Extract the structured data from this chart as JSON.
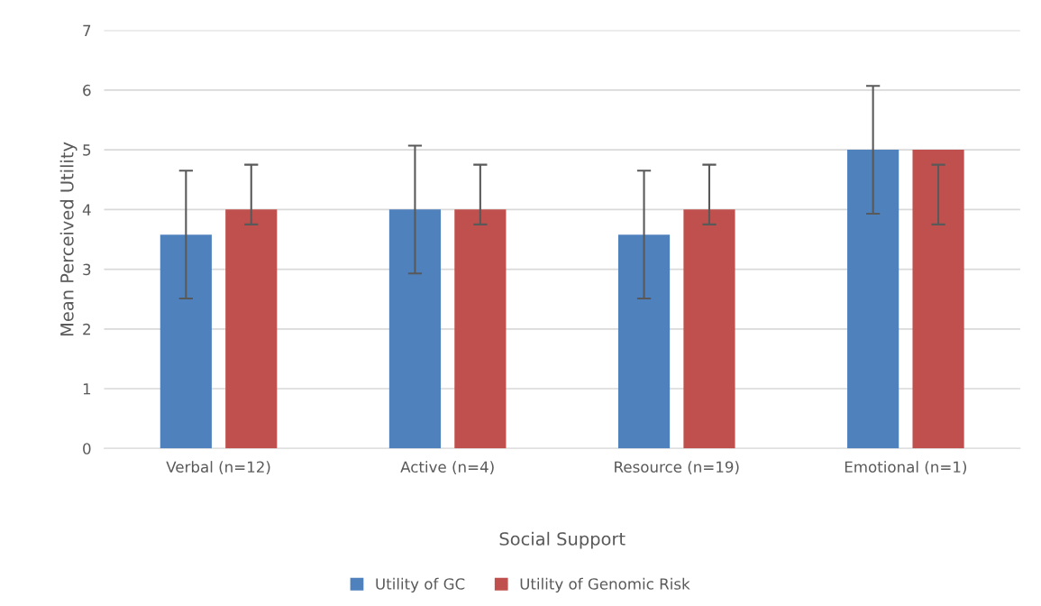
{
  "chart_data": {
    "type": "bar",
    "xlabel": "Social Support",
    "ylabel": "Mean Perceived Utility",
    "categories": [
      "Verbal (n=12)",
      "Active (n=4)",
      "Resource (n=19)",
      "Emotional (n=1)"
    ],
    "series": [
      {
        "name": "Utility of GC",
        "color": "#4f81bd",
        "values": [
          3.58,
          4,
          3.58,
          5
        ],
        "errors": [
          [
            2.51,
            4.65
          ],
          [
            2.93,
            5.07
          ],
          [
            2.51,
            4.65
          ],
          [
            3.93,
            6.07
          ]
        ]
      },
      {
        "name": "Utility of Genomic Risk",
        "color": "#c0504d",
        "values": [
          4,
          4,
          4,
          5
        ],
        "errors": [
          [
            3.75,
            4.75
          ],
          [
            3.75,
            4.75
          ],
          [
            3.75,
            4.75
          ],
          [
            3.75,
            4.75
          ]
        ]
      }
    ],
    "ylim": [
      0,
      7
    ],
    "yticks": [
      0,
      1,
      2,
      3,
      4,
      5,
      6,
      7
    ],
    "grid": "y",
    "legend": "bottom"
  }
}
